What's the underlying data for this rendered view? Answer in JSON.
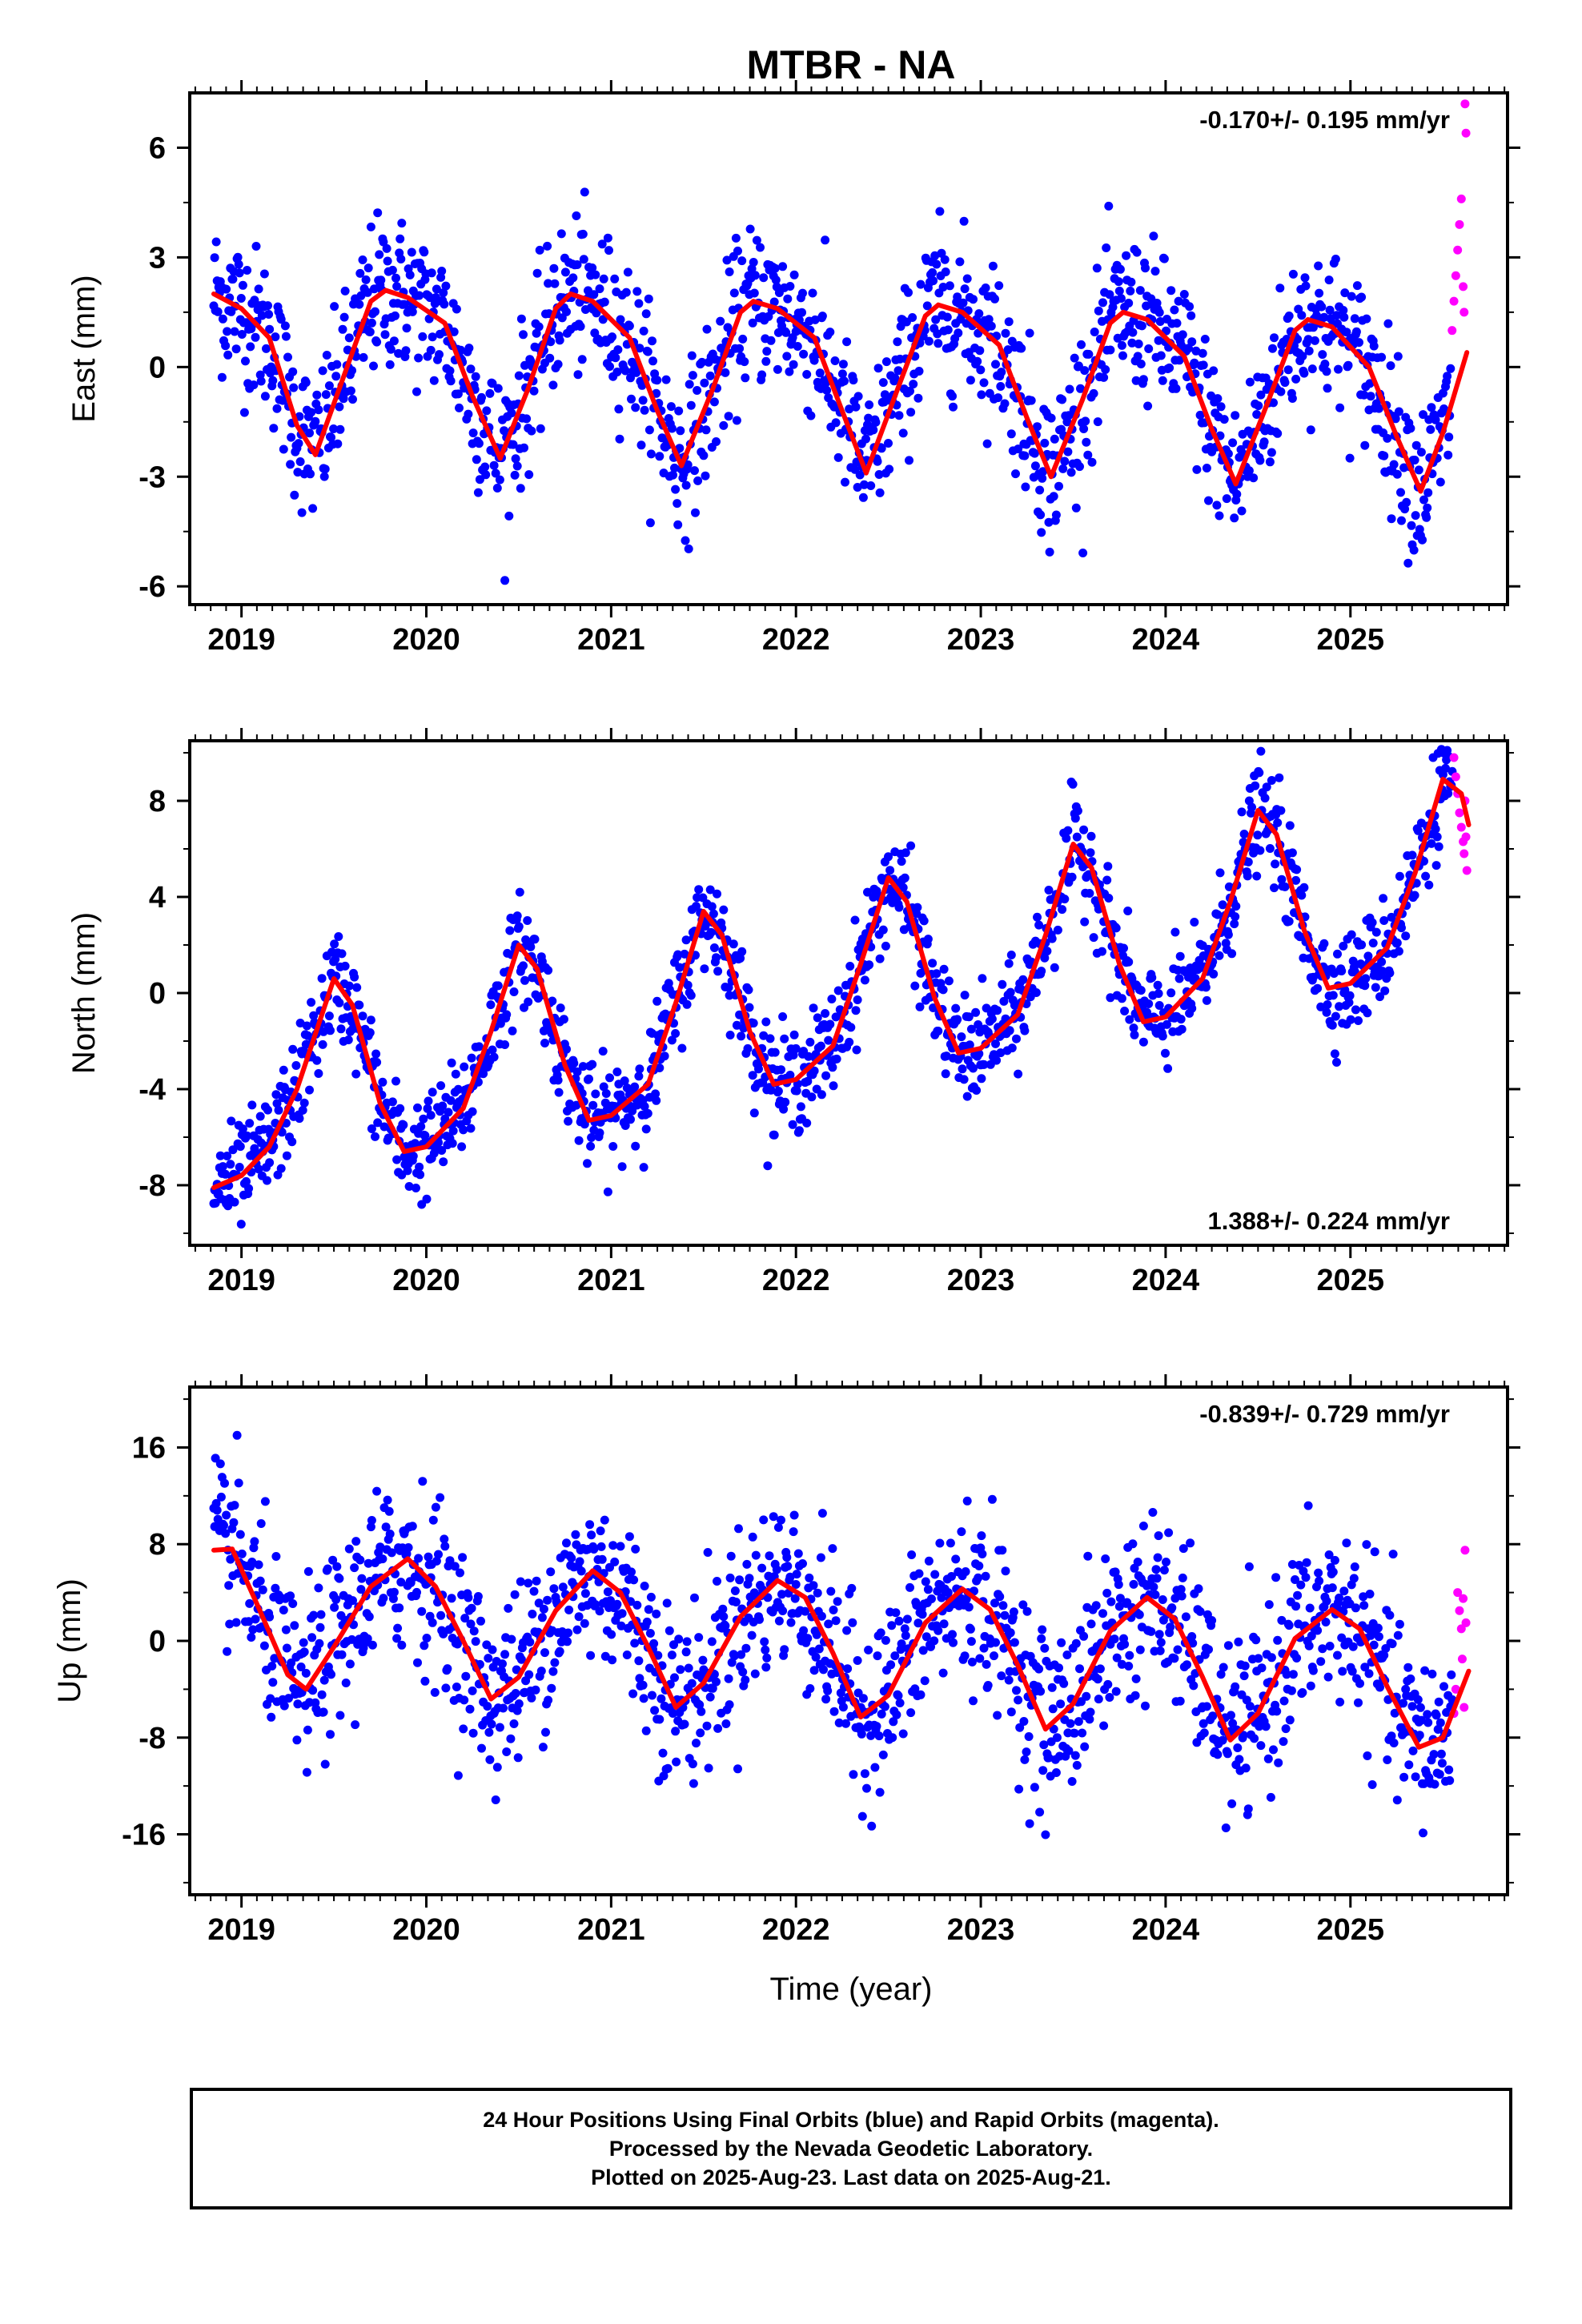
{
  "title": "MTBR - NA",
  "xlabel": "Time (year)",
  "footer": {
    "line1": "24 Hour Positions Using Final Orbits (blue) and Rapid Orbits (magenta).",
    "line2": "Processed by the Nevada Geodetic Laboratory.",
    "line3": "Plotted on 2025-Aug-23. Last data on 2025-Aug-21."
  },
  "colors": {
    "final": "#0000ff",
    "rapid": "#ff00ff",
    "model": "#ff0000"
  },
  "chart_data": [
    {
      "type": "scatter",
      "ylabel": "East (mm)",
      "rate": "-0.170+/- 0.195 mm/yr",
      "rate_position": "top-right",
      "xlim": [
        2018.72,
        2025.85
      ],
      "ylim": [
        -6.5,
        7.5
      ],
      "xticks": [
        2019,
        2020,
        2021,
        2022,
        2023,
        2024,
        2025
      ],
      "xtick_labels": [
        "2019",
        "2020",
        "2021",
        "2022",
        "2023",
        "2024",
        "2025"
      ],
      "yticks": [
        -6,
        -3,
        0,
        3,
        6
      ],
      "ytick_labels": [
        "-6",
        "-3",
        "0",
        "3",
        "6"
      ],
      "series": [
        {
          "role": "model",
          "x": [
            2018.85,
            2019.0,
            2019.15,
            2019.3,
            2019.4,
            2019.55,
            2019.7,
            2019.78,
            2019.9,
            2020.1,
            2020.25,
            2020.4,
            2020.55,
            2020.7,
            2020.78,
            2020.9,
            2021.1,
            2021.25,
            2021.38,
            2021.55,
            2021.7,
            2021.77,
            2021.9,
            2022.1,
            2022.25,
            2022.38,
            2022.55,
            2022.7,
            2022.77,
            2022.9,
            2023.1,
            2023.25,
            2023.38,
            2023.55,
            2023.7,
            2023.77,
            2023.9,
            2024.1,
            2024.25,
            2024.38,
            2024.55,
            2024.7,
            2024.77,
            2024.9,
            2025.1,
            2025.25,
            2025.38,
            2025.5,
            2025.63
          ],
          "y": [
            2.0,
            1.6,
            0.8,
            -1.6,
            -2.4,
            -0.3,
            1.8,
            2.1,
            1.9,
            1.2,
            -0.8,
            -2.5,
            -0.6,
            1.6,
            2.0,
            1.8,
            0.8,
            -1.2,
            -2.7,
            -0.6,
            1.5,
            1.8,
            1.6,
            0.8,
            -1.2,
            -2.9,
            -0.6,
            1.4,
            1.7,
            1.5,
            0.6,
            -1.4,
            -3.0,
            -0.9,
            1.2,
            1.5,
            1.3,
            0.3,
            -1.7,
            -3.2,
            -1.0,
            1.0,
            1.3,
            1.1,
            0.0,
            -1.9,
            -3.4,
            -1.8,
            0.4
          ]
        },
        {
          "role": "rapid",
          "x": [
            2025.55,
            2025.56,
            2025.57,
            2025.58,
            2025.59,
            2025.6,
            2025.61,
            2025.615,
            2025.62,
            2025.625
          ],
          "y": [
            1.0,
            1.8,
            2.5,
            3.2,
            3.9,
            4.6,
            2.2,
            1.5,
            7.2,
            6.4
          ]
        }
      ]
    },
    {
      "type": "scatter",
      "ylabel": "North (mm)",
      "rate": "1.388+/- 0.224 mm/yr",
      "rate_position": "bottom-right",
      "xlim": [
        2018.72,
        2025.85
      ],
      "ylim": [
        -10.5,
        10.5
      ],
      "xticks": [
        2019,
        2020,
        2021,
        2022,
        2023,
        2024,
        2025
      ],
      "xtick_labels": [
        "2019",
        "2020",
        "2021",
        "2022",
        "2023",
        "2024",
        "2025"
      ],
      "yticks": [
        -8,
        -4,
        0,
        4,
        8
      ],
      "ytick_labels": [
        "-8",
        "-4",
        "0",
        "4",
        "8"
      ],
      "series": [
        {
          "role": "model",
          "x": [
            2018.85,
            2019.0,
            2019.15,
            2019.3,
            2019.5,
            2019.6,
            2019.75,
            2019.88,
            2020.0,
            2020.2,
            2020.35,
            2020.5,
            2020.6,
            2020.75,
            2020.88,
            2021.0,
            2021.2,
            2021.35,
            2021.5,
            2021.6,
            2021.75,
            2021.88,
            2022.0,
            2022.2,
            2022.35,
            2022.5,
            2022.6,
            2022.75,
            2022.88,
            2023.0,
            2023.2,
            2023.35,
            2023.5,
            2023.6,
            2023.75,
            2023.88,
            2024.0,
            2024.2,
            2024.35,
            2024.5,
            2024.6,
            2024.75,
            2024.88,
            2025.0,
            2025.2,
            2025.35,
            2025.5,
            2025.6,
            2025.64
          ],
          "y": [
            -8.1,
            -7.6,
            -6.4,
            -4.0,
            0.6,
            -0.5,
            -4.6,
            -6.6,
            -6.4,
            -4.8,
            -1.6,
            2.0,
            1.0,
            -3.0,
            -5.3,
            -5.1,
            -3.8,
            -0.4,
            3.4,
            2.4,
            -1.6,
            -3.8,
            -3.6,
            -2.2,
            1.2,
            4.8,
            3.8,
            -0.2,
            -2.5,
            -2.3,
            -0.9,
            2.4,
            6.2,
            5.2,
            1.2,
            -1.2,
            -1.0,
            0.6,
            3.8,
            7.6,
            6.6,
            2.6,
            0.2,
            0.4,
            1.9,
            5.0,
            8.9,
            8.3,
            7.0
          ]
        },
        {
          "role": "rapid",
          "x": [
            2025.56,
            2025.57,
            2025.58,
            2025.59,
            2025.6,
            2025.61,
            2025.615,
            2025.62,
            2025.625,
            2025.63
          ],
          "y": [
            9.8,
            9.0,
            8.3,
            7.5,
            6.9,
            6.3,
            5.8,
            8.0,
            6.5,
            5.1
          ]
        }
      ]
    },
    {
      "type": "scatter",
      "ylabel": "Up (mm)",
      "rate": "-0.839+/- 0.729 mm/yr",
      "rate_position": "top-right",
      "xlim": [
        2018.72,
        2025.85
      ],
      "ylim": [
        -21,
        21
      ],
      "xticks": [
        2019,
        2020,
        2021,
        2022,
        2023,
        2024,
        2025
      ],
      "xtick_labels": [
        "2019",
        "2020",
        "2021",
        "2022",
        "2023",
        "2024",
        "2025"
      ],
      "yticks": [
        -16,
        -8,
        0,
        8,
        16
      ],
      "ytick_labels": [
        "-16",
        "-8",
        "0",
        "8",
        "16"
      ],
      "series": [
        {
          "role": "model",
          "x": [
            2018.85,
            2018.95,
            2019.1,
            2019.25,
            2019.35,
            2019.5,
            2019.7,
            2019.9,
            2020.05,
            2020.2,
            2020.35,
            2020.5,
            2020.7,
            2020.9,
            2021.05,
            2021.2,
            2021.35,
            2021.5,
            2021.7,
            2021.9,
            2022.05,
            2022.2,
            2022.35,
            2022.5,
            2022.7,
            2022.9,
            2023.05,
            2023.2,
            2023.35,
            2023.5,
            2023.7,
            2023.9,
            2024.05,
            2024.2,
            2024.35,
            2024.5,
            2024.7,
            2024.9,
            2025.05,
            2025.2,
            2025.37,
            2025.5,
            2025.64
          ],
          "y": [
            7.5,
            7.6,
            2.5,
            -2.8,
            -4.0,
            -0.5,
            4.5,
            6.8,
            4.5,
            0.0,
            -4.8,
            -3.0,
            2.5,
            5.8,
            4.0,
            -0.5,
            -5.5,
            -3.5,
            2.0,
            5.0,
            3.6,
            -1.0,
            -6.3,
            -4.5,
            1.5,
            4.3,
            2.6,
            -2.0,
            -7.3,
            -5.2,
            0.8,
            3.6,
            1.8,
            -3.0,
            -8.2,
            -6.0,
            0.2,
            2.6,
            1.0,
            -3.8,
            -8.8,
            -8.0,
            -2.5
          ]
        },
        {
          "role": "rapid",
          "x": [
            2025.56,
            2025.57,
            2025.58,
            2025.59,
            2025.6,
            2025.605,
            2025.61,
            2025.615,
            2025.62,
            2025.625
          ],
          "y": [
            -6.0,
            -4.0,
            4.0,
            2.5,
            1.0,
            -1.5,
            3.5,
            -5.5,
            7.5,
            1.5
          ]
        }
      ]
    }
  ]
}
